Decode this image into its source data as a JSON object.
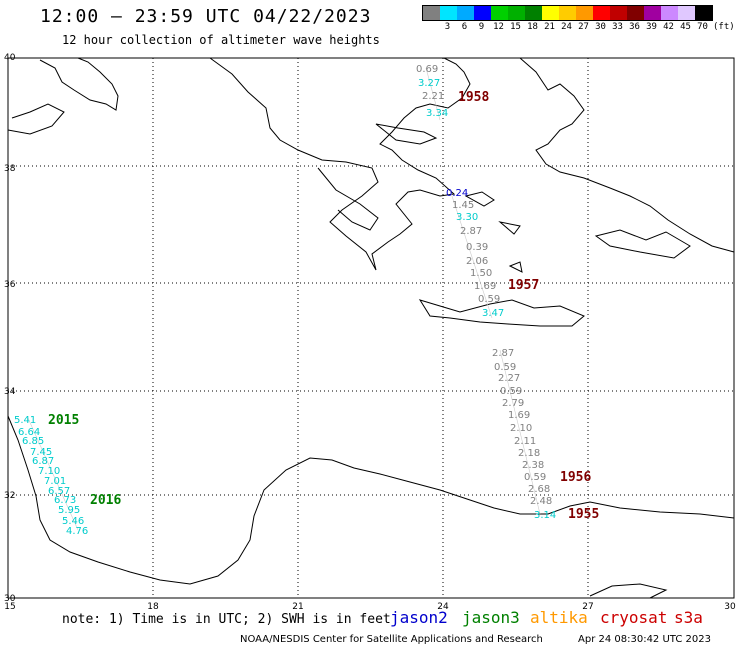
{
  "title": "12:00 – 23:59 UTC 04/22/2023",
  "subtitle": "12 hour collection of altimeter wave heights",
  "legend": {
    "colors": [
      "#808080",
      "#00e5ff",
      "#00aaff",
      "#0000ff",
      "#00d000",
      "#00b000",
      "#008000",
      "#ffff00",
      "#ffcc00",
      "#ff9900",
      "#ff0000",
      "#c00000",
      "#800000",
      "#a000a0",
      "#cc88ff",
      "#e0c8ff",
      "#000000"
    ],
    "labels": [
      "",
      "3",
      "6",
      "9",
      "12",
      "15",
      "18",
      "21",
      "24",
      "27",
      "30",
      "33",
      "36",
      "39",
      "42",
      "45",
      "70"
    ],
    "unit": "(ft)"
  },
  "axes": {
    "lat_labels": [
      "40",
      "38",
      "36",
      "34",
      "32",
      "30"
    ],
    "lon_labels": [
      "15",
      "18",
      "21",
      "24",
      "27",
      "30"
    ]
  },
  "colors": {
    "jason2": "#0000cc",
    "jason3": "#008000",
    "altika": "#ff9900",
    "cryosat": "#cc0000",
    "s3a": "#cc0000",
    "gray_obs": "#808080",
    "cyan_obs": "#00cccc",
    "pass_id": "#800000",
    "pass_id_green": "#008000"
  },
  "observations": {
    "track_1958": [
      {
        "v": "0.69",
        "c": "gray"
      },
      {
        "v": "3.27",
        "c": "cyan"
      },
      {
        "v": "2.21",
        "c": "gray"
      },
      {
        "v": "3.34",
        "c": "cyan"
      }
    ],
    "track_1957": [
      {
        "v": "0.24",
        "c": "blue"
      },
      {
        "v": "1.45",
        "c": "gray"
      },
      {
        "v": "3.30",
        "c": "cyan"
      },
      {
        "v": "2.87",
        "c": "gray"
      },
      {
        "v": "0.39",
        "c": "gray"
      },
      {
        "v": "2.06",
        "c": "gray"
      },
      {
        "v": "1.50",
        "c": "gray"
      },
      {
        "v": "1.69",
        "c": "gray"
      },
      {
        "v": "0.59",
        "c": "gray"
      },
      {
        "v": "3.47",
        "c": "cyan"
      }
    ],
    "track_1956": [
      {
        "v": "2.87",
        "c": "gray"
      },
      {
        "v": "0.59",
        "c": "gray"
      },
      {
        "v": "2.27",
        "c": "gray"
      },
      {
        "v": "0.59",
        "c": "gray"
      },
      {
        "v": "2.79",
        "c": "gray"
      },
      {
        "v": "1.69",
        "c": "gray"
      },
      {
        "v": "2.10",
        "c": "gray"
      },
      {
        "v": "2.11",
        "c": "gray"
      },
      {
        "v": "2.18",
        "c": "gray"
      },
      {
        "v": "2.38",
        "c": "gray"
      },
      {
        "v": "0.59",
        "c": "gray"
      },
      {
        "v": "2.68",
        "c": "gray"
      },
      {
        "v": "2.48",
        "c": "gray"
      },
      {
        "v": "3.14",
        "c": "cyan"
      }
    ],
    "track_2015": [
      {
        "v": "5.41"
      },
      {
        "v": "6.64"
      },
      {
        "v": "6.85"
      },
      {
        "v": "7.45"
      },
      {
        "v": "6.87"
      },
      {
        "v": "7.10"
      },
      {
        "v": "7.01"
      },
      {
        "v": "6.57"
      },
      {
        "v": "6.73"
      },
      {
        "v": "5.95"
      },
      {
        "v": "5.46"
      },
      {
        "v": "4.76"
      }
    ]
  },
  "pass_ids": {
    "p1958": "1958",
    "p1957": "1957",
    "p1956": "1956",
    "p1955": "1955",
    "p2015": "2015",
    "p2016": "2016"
  },
  "footer": {
    "note": "note: 1) Time is in UTC; 2) SWH is in feet",
    "sat_jason2": "jason2",
    "sat_jason3": "jason3",
    "sat_altika": "altika",
    "sat_cryosat": "cryosat",
    "sat_s3a": "s3a",
    "credit": "NOAA/NESDIS Center for Satellite Applications and Research",
    "timestamp": "Apr 24 08:30:42 UTC 2023"
  }
}
